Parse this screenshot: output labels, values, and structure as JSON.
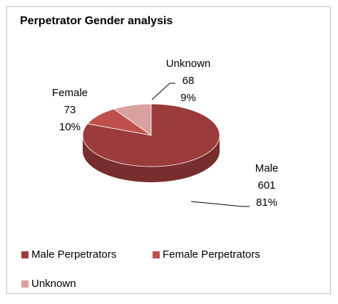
{
  "chart_data": {
    "type": "pie",
    "title": "Perpetrator Gender analysis",
    "categories": [
      "Male Perpetrators",
      "Female Perpetrators",
      "Unknown"
    ],
    "label_names": [
      "Male",
      "Female",
      "Unknown"
    ],
    "values": [
      601,
      73,
      68
    ],
    "percent_labels": [
      "81%",
      "10%",
      "9%"
    ],
    "colors": [
      "#9b3b3b",
      "#c0504d",
      "#d9a0a0"
    ],
    "legend": "bottom"
  }
}
